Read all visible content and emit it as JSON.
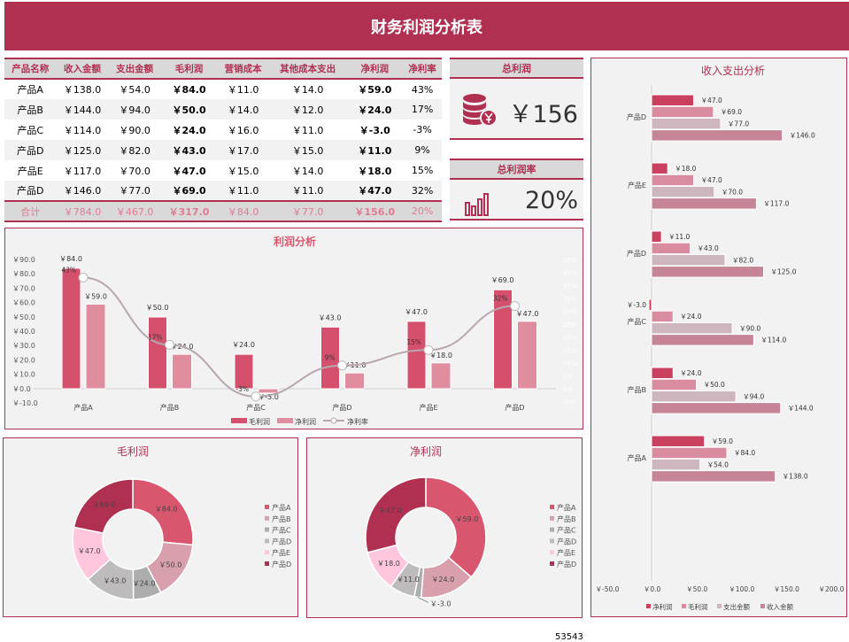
{
  "header": {
    "title": "财务利润分析表"
  },
  "table": {
    "headers": [
      "产品名称",
      "收入金额",
      "支出金额",
      "毛利润",
      "营销成本",
      "其他成本支出",
      "净利润",
      "净利率"
    ],
    "rows": [
      [
        "产品A",
        "￥138.0",
        "￥54.0",
        "￥84.0",
        "￥11.0",
        "￥14.0",
        "￥59.0",
        "43%"
      ],
      [
        "产品B",
        "￥144.0",
        "￥94.0",
        "￥50.0",
        "￥14.0",
        "￥12.0",
        "￥24.0",
        "17%"
      ],
      [
        "产品C",
        "￥114.0",
        "￥90.0",
        "￥24.0",
        "￥16.0",
        "￥11.0",
        "￥-3.0",
        "-3%"
      ],
      [
        "产品D",
        "￥125.0",
        "￥82.0",
        "￥43.0",
        "￥17.0",
        "￥15.0",
        "￥11.0",
        "9%"
      ],
      [
        "产品E",
        "￥117.0",
        "￥70.0",
        "￥47.0",
        "￥15.0",
        "￥14.0",
        "￥18.0",
        "15%"
      ],
      [
        "产品D",
        "￥146.0",
        "￥77.0",
        "￥69.0",
        "￥11.0",
        "￥11.0",
        "￥47.0",
        "32%"
      ]
    ],
    "total": [
      "合计",
      "￥784.0",
      "￥467.0",
      "￥317.0",
      "￥84.0",
      "￥77.0",
      "￥156.0",
      "20%"
    ]
  },
  "kpi": {
    "total_profit": {
      "label": "总利润",
      "value": "￥156",
      "icon": "coin-stack-icon"
    },
    "profit_rate": {
      "label": "总利润率",
      "value": "20%",
      "icon": "bar-chart-icon"
    }
  },
  "colors": {
    "brand": "#B03052",
    "panel": "#F2F2F2",
    "header_gray": "#D9D9D9"
  },
  "chart_data": [
    {
      "type": "bar+line",
      "title": "利润分析",
      "categories": [
        "产品A",
        "产品B",
        "产品C",
        "产品D",
        "产品E",
        "产品D"
      ],
      "series": [
        {
          "name": "毛利润",
          "type": "bar",
          "values": [
            84,
            50,
            24,
            43,
            47,
            69
          ],
          "color": "#D4506C"
        },
        {
          "name": "净利润",
          "type": "bar",
          "values": [
            59,
            24,
            -3,
            11,
            18,
            47
          ],
          "color": "#E08DA0"
        },
        {
          "name": "净利率",
          "type": "line",
          "axis": "right",
          "values": [
            43,
            17,
            -3,
            9,
            15,
            32
          ],
          "color": "#B8A6B0"
        }
      ],
      "ylim": [
        -10,
        90
      ],
      "yticks": [
        "￥90.0",
        "￥80.0",
        "￥70.0",
        "￥60.0",
        "￥50.0",
        "￥40.0",
        "￥30.0",
        "￥20.0",
        "￥10.0",
        "￥0.0",
        "￥-10.0"
      ],
      "y2lim": [
        -5,
        50
      ],
      "y2ticks": [
        "50%",
        "45%",
        "40%",
        "35%",
        "30%",
        "25%",
        "20%",
        "15%",
        "10%",
        "5%",
        "0%",
        "-5%"
      ],
      "legend": "bottom"
    },
    {
      "type": "bar",
      "orientation": "horizontal",
      "title": "收入支出分析",
      "categories": [
        "产品A",
        "产品B",
        "产品C",
        "产品D",
        "产品E",
        "产品D"
      ],
      "series": [
        {
          "name": "净利润",
          "values": [
            59,
            24,
            -3,
            11,
            18,
            47
          ],
          "color": "#C9415F"
        },
        {
          "name": "毛利润",
          "values": [
            84,
            50,
            24,
            43,
            47,
            69
          ],
          "color": "#D98CA0"
        },
        {
          "name": "支出金额",
          "values": [
            54,
            94,
            90,
            82,
            70,
            77
          ],
          "color": "#CDB6BE"
        },
        {
          "name": "收入金额",
          "values": [
            138,
            144,
            114,
            125,
            117,
            146
          ],
          "color": "#C58596"
        }
      ],
      "xlim": [
        -50,
        200
      ],
      "xticks": [
        "￥-50.0",
        "￥0.0",
        "￥50.0",
        "￥100.0",
        "￥150.0",
        "￥200.0"
      ],
      "legend": "bottom"
    },
    {
      "type": "pie",
      "donut": true,
      "title": "毛利润",
      "categories": [
        "产品A",
        "产品B",
        "产品C",
        "产品D",
        "产品E",
        "产品D"
      ],
      "values": [
        84,
        50,
        24,
        43,
        47,
        69
      ],
      "colors": [
        "#D9566F",
        "#D8A0AC",
        "#ADADAD",
        "#BDBBBB",
        "#FFC6DE",
        "#B03052"
      ],
      "legend": "right"
    },
    {
      "type": "pie",
      "donut": true,
      "title": "净利润",
      "categories": [
        "产品A",
        "产品B",
        "产品C",
        "产品D",
        "产品E",
        "产品D"
      ],
      "values": [
        59,
        24,
        -3,
        11,
        18,
        47
      ],
      "colors": [
        "#D9566F",
        "#D8A0AC",
        "#ADADAD",
        "#BDBBBB",
        "#FFC6DE",
        "#B03052"
      ],
      "legend": "right"
    }
  ],
  "footer": {
    "number": "53543"
  }
}
